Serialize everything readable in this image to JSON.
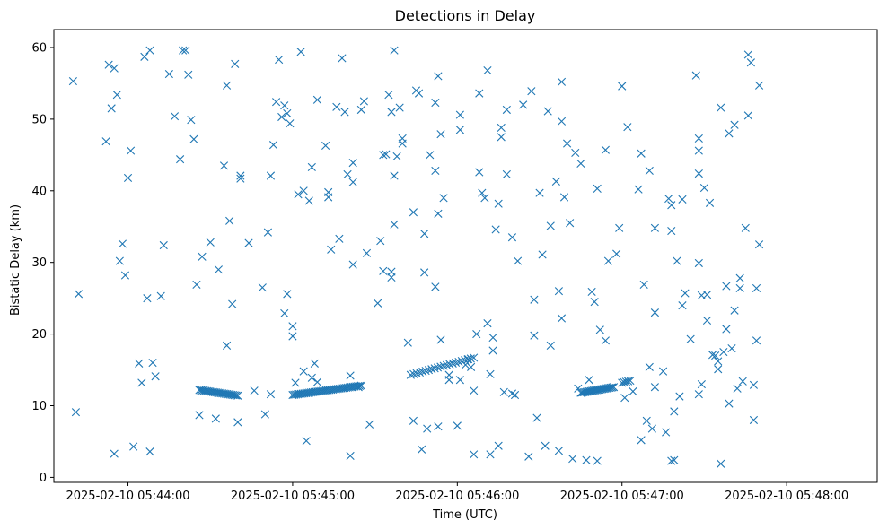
{
  "chart_data": {
    "type": "scatter",
    "title": "Detections in Delay",
    "xlabel": "Time (UTC)",
    "ylabel": "Bistatic Delay (km)",
    "x_ticks": [
      "2025-02-10 05:44:00",
      "2025-02-10 05:45:00",
      "2025-02-10 05:46:00",
      "2025-02-10 05:47:00",
      "2025-02-10 05:48:00"
    ],
    "y_ticks": [
      0,
      10,
      20,
      30,
      40,
      50,
      60
    ],
    "xlim": [
      "2025-02-10 05:43:33",
      "2025-02-10 05:48:33"
    ],
    "ylim": [
      -0.7,
      62.5
    ],
    "grid": false,
    "marker": "x",
    "color": "#1f77b4",
    "x_format": "seconds after 2025-02-10 05:43:00 (UTC)",
    "series": [
      {
        "points": [
          [
            40,
            55.3
          ],
          [
            42,
            25.6
          ],
          [
            41,
            9.1
          ],
          [
            52,
            46.9
          ],
          [
            53,
            57.6
          ],
          [
            54,
            51.5
          ],
          [
            55,
            57.1
          ],
          [
            55,
            3.3
          ],
          [
            56,
            53.4
          ],
          [
            57,
            30.2
          ],
          [
            58,
            32.6
          ],
          [
            59,
            28.2
          ],
          [
            60,
            41.8
          ],
          [
            61,
            45.6
          ],
          [
            62,
            4.3
          ],
          [
            64,
            15.9
          ],
          [
            65,
            13.2
          ],
          [
            66,
            58.7
          ],
          [
            67,
            25.0
          ],
          [
            68,
            59.6
          ],
          [
            68,
            3.6
          ],
          [
            69,
            16.0
          ],
          [
            70,
            14.1
          ],
          [
            72,
            25.3
          ],
          [
            73,
            32.4
          ],
          [
            75,
            56.3
          ],
          [
            77,
            50.4
          ],
          [
            79,
            44.4
          ],
          [
            80,
            59.6
          ],
          [
            81,
            59.6
          ],
          [
            82,
            56.2
          ],
          [
            83,
            49.9
          ],
          [
            84,
            47.2
          ],
          [
            85,
            26.9
          ],
          [
            86,
            8.7
          ],
          [
            87,
            30.8
          ],
          [
            90,
            32.8
          ],
          [
            92,
            8.2
          ],
          [
            93,
            29.0
          ],
          [
            95,
            43.5
          ],
          [
            96,
            54.7
          ],
          [
            96,
            18.4
          ],
          [
            97,
            35.8
          ],
          [
            98,
            24.2
          ],
          [
            99,
            57.7
          ],
          [
            100,
            7.7
          ],
          [
            101,
            42.1
          ],
          [
            101,
            41.7
          ],
          [
            104,
            32.7
          ],
          [
            106,
            12.1
          ],
          [
            109,
            26.5
          ],
          [
            110,
            8.8
          ],
          [
            111,
            34.2
          ],
          [
            112,
            42.1
          ],
          [
            112,
            11.6
          ],
          [
            113,
            46.4
          ],
          [
            114,
            52.4
          ],
          [
            115,
            58.3
          ],
          [
            116,
            50.3
          ],
          [
            117,
            51.9
          ],
          [
            117,
            22.9
          ],
          [
            118,
            50.8
          ],
          [
            118,
            25.6
          ],
          [
            119,
            49.4
          ],
          [
            120,
            21.1
          ],
          [
            120,
            19.7
          ],
          [
            121,
            13.2
          ],
          [
            122,
            39.5
          ],
          [
            123,
            59.4
          ],
          [
            124,
            40.0
          ],
          [
            124,
            14.8
          ],
          [
            125,
            5.1
          ],
          [
            126,
            38.6
          ],
          [
            127,
            43.3
          ],
          [
            127,
            13.9
          ],
          [
            128,
            15.9
          ],
          [
            129,
            52.7
          ],
          [
            129,
            13.3
          ],
          [
            132,
            46.3
          ],
          [
            133,
            39.8
          ],
          [
            133,
            39.1
          ],
          [
            134,
            31.8
          ],
          [
            136,
            51.7
          ],
          [
            137,
            33.3
          ],
          [
            138,
            58.5
          ],
          [
            139,
            51.0
          ],
          [
            140,
            42.3
          ],
          [
            141,
            14.2
          ],
          [
            141,
            3.0
          ],
          [
            142,
            41.2
          ],
          [
            142,
            43.9
          ],
          [
            142,
            29.7
          ],
          [
            144,
            12.6
          ],
          [
            145,
            51.3
          ],
          [
            146,
            52.5
          ],
          [
            147,
            31.3
          ],
          [
            148,
            7.4
          ],
          [
            151,
            24.3
          ],
          [
            152,
            33.0
          ],
          [
            153,
            45.0
          ],
          [
            153,
            28.8
          ],
          [
            154,
            45.1
          ],
          [
            155,
            53.4
          ],
          [
            156,
            51.0
          ],
          [
            156,
            28.7
          ],
          [
            156,
            27.9
          ],
          [
            157,
            59.6
          ],
          [
            157,
            35.3
          ],
          [
            157,
            42.1
          ],
          [
            158,
            44.8
          ],
          [
            159,
            51.6
          ],
          [
            160,
            47.3
          ],
          [
            160,
            46.6
          ],
          [
            162,
            18.8
          ],
          [
            164,
            37.0
          ],
          [
            164,
            7.9
          ],
          [
            165,
            54.0
          ],
          [
            166,
            53.6
          ],
          [
            167,
            3.9
          ],
          [
            168,
            34.0
          ],
          [
            168,
            28.6
          ],
          [
            169,
            6.8
          ],
          [
            170,
            45.0
          ],
          [
            172,
            52.3
          ],
          [
            172,
            26.6
          ],
          [
            172,
            42.8
          ],
          [
            173,
            56.0
          ],
          [
            173,
            36.8
          ],
          [
            173,
            7.1
          ],
          [
            174,
            47.9
          ],
          [
            174,
            19.2
          ],
          [
            175,
            39.0
          ],
          [
            177,
            13.6
          ],
          [
            177,
            14.3
          ],
          [
            180,
            7.2
          ],
          [
            181,
            48.5
          ],
          [
            181,
            50.6
          ],
          [
            181,
            13.6
          ],
          [
            183,
            15.7
          ],
          [
            184,
            16.5
          ],
          [
            185,
            15.4
          ],
          [
            186,
            3.2
          ],
          [
            186,
            12.1
          ],
          [
            187,
            20.0
          ],
          [
            188,
            53.6
          ],
          [
            188,
            42.6
          ],
          [
            189,
            39.7
          ],
          [
            190,
            39.0
          ],
          [
            191,
            56.8
          ],
          [
            191,
            21.5
          ],
          [
            192,
            14.4
          ],
          [
            192,
            3.2
          ],
          [
            193,
            19.5
          ],
          [
            193,
            17.7
          ],
          [
            194,
            34.6
          ],
          [
            195,
            38.2
          ],
          [
            195,
            4.4
          ],
          [
            196,
            47.5
          ],
          [
            196,
            48.8
          ],
          [
            197,
            11.9
          ],
          [
            198,
            51.3
          ],
          [
            198,
            42.3
          ],
          [
            200,
            33.5
          ],
          [
            200,
            11.7
          ],
          [
            201,
            11.5
          ],
          [
            202,
            30.2
          ],
          [
            204,
            52.0
          ],
          [
            206,
            2.9
          ],
          [
            207,
            53.9
          ],
          [
            208,
            24.8
          ],
          [
            208,
            19.8
          ],
          [
            209,
            8.3
          ],
          [
            210,
            39.7
          ],
          [
            211,
            31.1
          ],
          [
            212,
            4.4
          ],
          [
            213,
            51.1
          ],
          [
            214,
            18.4
          ],
          [
            214,
            35.1
          ],
          [
            216,
            41.3
          ],
          [
            217,
            26.0
          ],
          [
            217,
            3.7
          ],
          [
            218,
            22.2
          ],
          [
            218,
            49.7
          ],
          [
            218,
            55.2
          ],
          [
            219,
            39.1
          ],
          [
            220,
            46.6
          ],
          [
            221,
            35.5
          ],
          [
            222,
            2.6
          ],
          [
            223,
            45.3
          ],
          [
            224,
            12.4
          ],
          [
            225,
            43.8
          ],
          [
            227,
            2.4
          ],
          [
            228,
            13.6
          ],
          [
            229,
            25.9
          ],
          [
            230,
            24.5
          ],
          [
            231,
            2.3
          ],
          [
            231,
            40.3
          ],
          [
            232,
            20.6
          ],
          [
            234,
            45.7
          ],
          [
            234,
            19.1
          ],
          [
            235,
            30.2
          ],
          [
            238,
            31.2
          ],
          [
            239,
            34.8
          ],
          [
            240,
            54.6
          ],
          [
            241,
            11.1
          ],
          [
            242,
            48.9
          ],
          [
            244,
            12.0
          ],
          [
            246,
            40.2
          ],
          [
            247,
            45.2
          ],
          [
            247,
            5.2
          ],
          [
            248,
            26.9
          ],
          [
            249,
            7.9
          ],
          [
            250,
            42.8
          ],
          [
            250,
            15.4
          ],
          [
            251,
            6.8
          ],
          [
            252,
            34.8
          ],
          [
            252,
            23.0
          ],
          [
            252,
            12.6
          ],
          [
            255,
            14.8
          ],
          [
            256,
            6.3
          ],
          [
            257,
            38.9
          ],
          [
            258,
            38.0
          ],
          [
            258,
            34.4
          ],
          [
            258,
            2.3
          ],
          [
            259,
            2.4
          ],
          [
            259,
            9.2
          ],
          [
            260,
            30.2
          ],
          [
            261,
            11.3
          ],
          [
            262,
            38.8
          ],
          [
            262,
            24.0
          ],
          [
            263,
            25.7
          ],
          [
            265,
            19.3
          ],
          [
            267,
            56.1
          ],
          [
            268,
            47.3
          ],
          [
            268,
            45.6
          ],
          [
            268,
            42.4
          ],
          [
            268,
            29.9
          ],
          [
            268,
            11.6
          ],
          [
            269,
            25.4
          ],
          [
            269,
            13.0
          ],
          [
            270,
            40.4
          ],
          [
            271,
            21.9
          ],
          [
            271,
            25.5
          ],
          [
            272,
            38.3
          ],
          [
            273,
            17.1
          ],
          [
            274,
            17.0
          ],
          [
            275,
            16.2
          ],
          [
            275,
            15.1
          ],
          [
            276,
            51.6
          ],
          [
            276,
            1.9
          ],
          [
            277,
            17.5
          ],
          [
            278,
            26.7
          ],
          [
            278,
            20.7
          ],
          [
            279,
            10.3
          ],
          [
            279,
            48.0
          ],
          [
            280,
            18.0
          ],
          [
            281,
            23.3
          ],
          [
            281,
            49.2
          ],
          [
            282,
            12.4
          ],
          [
            283,
            27.8
          ],
          [
            283,
            26.4
          ],
          [
            284,
            13.4
          ],
          [
            285,
            34.8
          ],
          [
            286,
            50.5
          ],
          [
            286,
            59.0
          ],
          [
            287,
            57.9
          ],
          [
            288,
            8.0
          ],
          [
            288,
            12.9
          ],
          [
            289,
            26.4
          ],
          [
            289,
            19.1
          ],
          [
            290,
            54.7
          ],
          [
            290,
            32.5
          ]
        ]
      },
      {
        "tracks": [
          {
            "t0": 86,
            "t1": 100,
            "y0": 12.2,
            "y1": 11.4,
            "n": 26
          },
          {
            "t0": 120,
            "t1": 145,
            "y0": 11.5,
            "y1": 12.8,
            "n": 42
          },
          {
            "t0": 163,
            "t1": 186,
            "y0": 14.3,
            "y1": 16.7,
            "n": 22
          },
          {
            "t0": 225,
            "t1": 237,
            "y0": 11.8,
            "y1": 12.6,
            "n": 24
          },
          {
            "t0": 240,
            "t1": 243,
            "y0": 13.2,
            "y1": 13.5,
            "n": 5
          }
        ]
      }
    ]
  }
}
